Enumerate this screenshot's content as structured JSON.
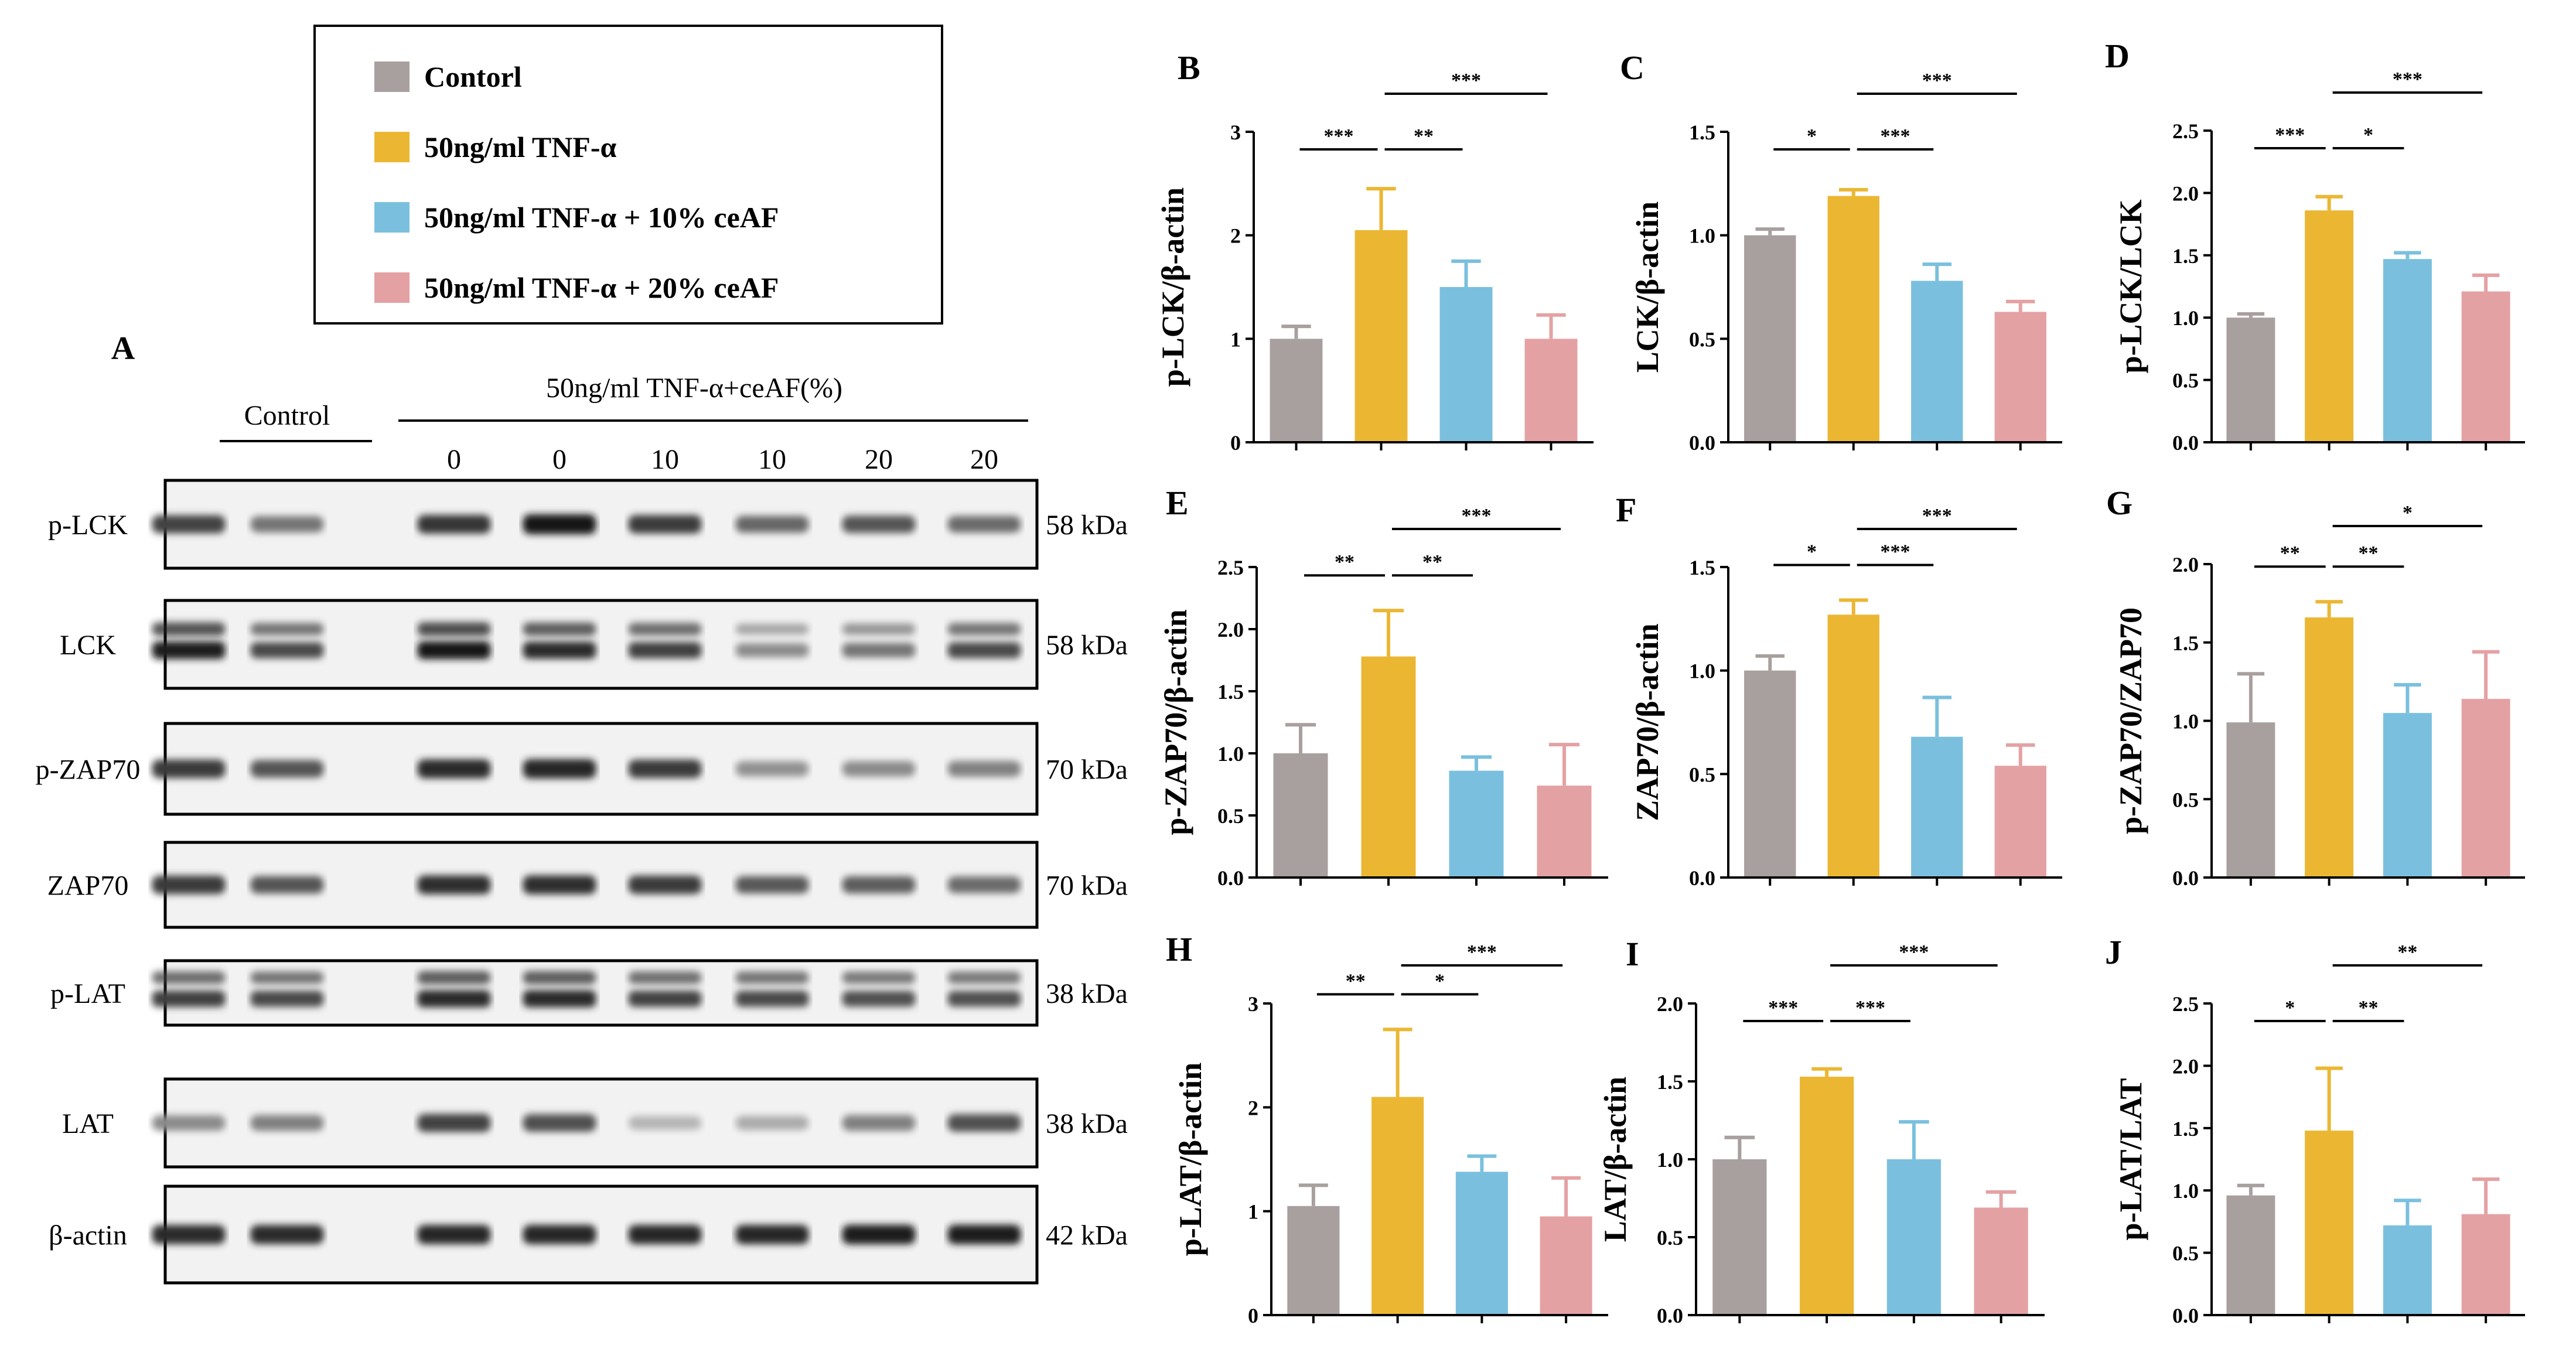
{
  "legend": {
    "items": [
      {
        "label": "Contorl",
        "color": "#a8a09e"
      },
      {
        "label": "50ng/ml TNF-α",
        "color": "#ebb733"
      },
      {
        "label": "50ng/ml TNF-α + 10% ceAF",
        "color": "#7ac0de"
      },
      {
        "label": "50ng/ml TNF-α + 20% ceAF",
        "color": "#e4a1a3"
      }
    ]
  },
  "blot": {
    "panel_letter": "A",
    "control_label": "Control",
    "treatment_label": "50ng/ml TNF-α+ceAF(%)",
    "lane_labels": [
      "0",
      "0",
      "10",
      "10",
      "20",
      "20"
    ],
    "rows": [
      {
        "name": "p-LCK",
        "kda": "58 kDa",
        "intensity": [
          0.78,
          0.55,
          0.85,
          1.0,
          0.82,
          0.62,
          0.7,
          0.6
        ],
        "double": false
      },
      {
        "name": "LCK",
        "kda": "58 kDa",
        "intensity": [
          0.95,
          0.75,
          1.0,
          0.9,
          0.8,
          0.45,
          0.55,
          0.75
        ],
        "double": true
      },
      {
        "name": "p-ZAP70",
        "kda": "70 kDa",
        "intensity": [
          0.82,
          0.7,
          0.9,
          0.92,
          0.82,
          0.42,
          0.45,
          0.5
        ],
        "double": false
      },
      {
        "name": "ZAP70",
        "kda": "70 kDa",
        "intensity": [
          0.82,
          0.7,
          0.88,
          0.88,
          0.82,
          0.68,
          0.66,
          0.6
        ],
        "double": false
      },
      {
        "name": "p-LAT",
        "kda": "38 kDa",
        "intensity": [
          0.8,
          0.75,
          0.9,
          0.9,
          0.78,
          0.75,
          0.72,
          0.72
        ],
        "double": true
      },
      {
        "name": "LAT",
        "kda": "38 kDa",
        "intensity": [
          0.45,
          0.5,
          0.78,
          0.72,
          0.25,
          0.3,
          0.5,
          0.72
        ],
        "double": false
      },
      {
        "name": "β-actin",
        "kda": "42 kDa",
        "intensity": [
          0.9,
          0.9,
          0.92,
          0.92,
          0.92,
          0.92,
          0.95,
          0.95
        ],
        "double": false
      }
    ]
  },
  "chart_data": [
    {
      "panel": "B",
      "type": "bar",
      "ylabel": "p-LCK/β-actin",
      "ylim": [
        0,
        3
      ],
      "yticks": [
        "0",
        "1",
        "2",
        "3"
      ],
      "tick_values": [
        0,
        1,
        2,
        3
      ],
      "values": [
        1.0,
        2.05,
        1.5,
        1.0
      ],
      "errors": [
        0.12,
        0.4,
        0.25,
        0.23
      ],
      "sig": [
        {
          "from": 0,
          "to": 1,
          "label": "***",
          "level": 1
        },
        {
          "from": 1,
          "to": 2,
          "label": "**",
          "level": 1
        },
        {
          "from": 1,
          "to": 3,
          "label": "***",
          "level": 2
        }
      ]
    },
    {
      "panel": "C",
      "type": "bar",
      "ylabel": "LCK/β-actin",
      "ylim": [
        0,
        1.5
      ],
      "yticks": [
        "0.0",
        "0.5",
        "1.0",
        "1.5"
      ],
      "tick_values": [
        0,
        0.5,
        1.0,
        1.5
      ],
      "values": [
        1.0,
        1.19,
        0.78,
        0.63
      ],
      "errors": [
        0.03,
        0.03,
        0.08,
        0.05
      ],
      "sig": [
        {
          "from": 0,
          "to": 1,
          "label": "*",
          "level": 1
        },
        {
          "from": 1,
          "to": 2,
          "label": "***",
          "level": 1
        },
        {
          "from": 1,
          "to": 3,
          "label": "***",
          "level": 2
        }
      ]
    },
    {
      "panel": "D",
      "type": "bar",
      "ylabel": "p-LCK/LCK",
      "ylim": [
        0,
        2.5
      ],
      "yticks": [
        "0.0",
        "0.5",
        "1.0",
        "1.5",
        "2.0",
        "2.5"
      ],
      "tick_values": [
        0,
        0.5,
        1.0,
        1.5,
        2.0,
        2.5
      ],
      "values": [
        1.0,
        1.86,
        1.47,
        1.21
      ],
      "errors": [
        0.03,
        0.11,
        0.05,
        0.13
      ],
      "sig": [
        {
          "from": 0,
          "to": 1,
          "label": "***",
          "level": 1
        },
        {
          "from": 1,
          "to": 2,
          "label": "*",
          "level": 1
        },
        {
          "from": 1,
          "to": 3,
          "label": "***",
          "level": 2
        }
      ]
    },
    {
      "panel": "E",
      "type": "bar",
      "ylabel": "p-ZAP70/β-actin",
      "ylim": [
        0,
        2.5
      ],
      "yticks": [
        "0.0",
        "0.5",
        "1.0",
        "1.5",
        "2.0",
        "2.5"
      ],
      "tick_values": [
        0,
        0.5,
        1.0,
        1.5,
        2.0,
        2.5
      ],
      "values": [
        1.0,
        1.78,
        0.86,
        0.74
      ],
      "errors": [
        0.23,
        0.37,
        0.11,
        0.33
      ],
      "sig": [
        {
          "from": 0,
          "to": 1,
          "label": "**",
          "level": 1
        },
        {
          "from": 1,
          "to": 2,
          "label": "**",
          "level": 1
        },
        {
          "from": 1,
          "to": 3,
          "label": "***",
          "level": 2
        }
      ]
    },
    {
      "panel": "F",
      "type": "bar",
      "ylabel": "ZAP70/β-actin",
      "ylim": [
        0,
        1.5
      ],
      "yticks": [
        "0.0",
        "0.5",
        "1.0",
        "1.5"
      ],
      "tick_values": [
        0,
        0.5,
        1.0,
        1.5
      ],
      "values": [
        1.0,
        1.27,
        0.68,
        0.54
      ],
      "errors": [
        0.07,
        0.07,
        0.19,
        0.1
      ],
      "sig": [
        {
          "from": 0,
          "to": 1,
          "label": "*",
          "level": 1
        },
        {
          "from": 1,
          "to": 2,
          "label": "***",
          "level": 1
        },
        {
          "from": 1,
          "to": 3,
          "label": "***",
          "level": 2
        }
      ]
    },
    {
      "panel": "G",
      "type": "bar",
      "ylabel": "p-ZAP70/ZAP70",
      "ylim": [
        0,
        2.0
      ],
      "yticks": [
        "0.0",
        "0.5",
        "1.0",
        "1.5",
        "2.0"
      ],
      "tick_values": [
        0,
        0.5,
        1.0,
        1.5,
        2.0
      ],
      "values": [
        0.99,
        1.66,
        1.05,
        1.14
      ],
      "errors": [
        0.31,
        0.1,
        0.18,
        0.3
      ],
      "sig": [
        {
          "from": 0,
          "to": 1,
          "label": "**",
          "level": 1
        },
        {
          "from": 1,
          "to": 2,
          "label": "**",
          "level": 1
        },
        {
          "from": 1,
          "to": 3,
          "label": "*",
          "level": 2
        }
      ]
    },
    {
      "panel": "H",
      "type": "bar",
      "ylabel": "p-LAT/β-actin",
      "ylim": [
        0,
        3
      ],
      "yticks": [
        "0",
        "1",
        "2",
        "3"
      ],
      "tick_values": [
        0,
        1,
        2,
        3
      ],
      "values": [
        1.05,
        2.1,
        1.38,
        0.95
      ],
      "errors": [
        0.2,
        0.65,
        0.15,
        0.37
      ],
      "sig": [
        {
          "from": 0,
          "to": 1,
          "label": "**",
          "level": 1
        },
        {
          "from": 1,
          "to": 2,
          "label": "*",
          "level": 1
        },
        {
          "from": 1,
          "to": 3,
          "label": "***",
          "level": 2
        }
      ]
    },
    {
      "panel": "I",
      "type": "bar",
      "ylabel": "LAT/β-actin",
      "ylim": [
        0,
        2.0
      ],
      "yticks": [
        "0.0",
        "0.5",
        "1.0",
        "1.5",
        "2.0"
      ],
      "tick_values": [
        0,
        0.5,
        1.0,
        1.5,
        2.0
      ],
      "values": [
        1.0,
        1.53,
        1.0,
        0.69
      ],
      "errors": [
        0.14,
        0.05,
        0.24,
        0.1
      ],
      "sig": [
        {
          "from": 0,
          "to": 1,
          "label": "***",
          "level": 1
        },
        {
          "from": 1,
          "to": 2,
          "label": "***",
          "level": 1
        },
        {
          "from": 1,
          "to": 3,
          "label": "***",
          "level": 2
        }
      ]
    },
    {
      "panel": "J",
      "type": "bar",
      "ylabel": "p-LAT/LAT",
      "ylim": [
        0,
        2.5
      ],
      "yticks": [
        "0.0",
        "0.5",
        "1.0",
        "1.5",
        "2.0",
        "2.5"
      ],
      "tick_values": [
        0,
        0.5,
        1.0,
        1.5,
        2.0,
        2.5
      ],
      "values": [
        0.96,
        1.48,
        0.72,
        0.81
      ],
      "errors": [
        0.08,
        0.5,
        0.2,
        0.28
      ],
      "sig": [
        {
          "from": 0,
          "to": 1,
          "label": "*",
          "level": 1
        },
        {
          "from": 1,
          "to": 2,
          "label": "**",
          "level": 1
        },
        {
          "from": 1,
          "to": 3,
          "label": "**",
          "level": 2
        }
      ]
    }
  ]
}
